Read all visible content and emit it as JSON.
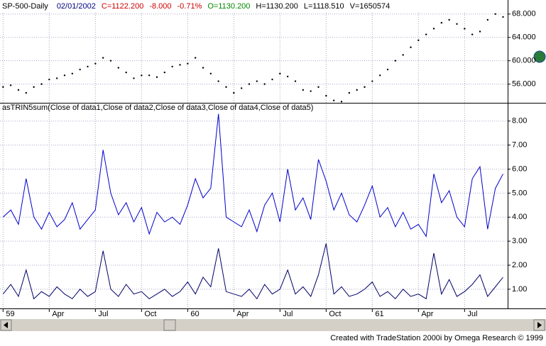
{
  "chart_data": [
    {
      "type": "line",
      "title": "SP-500-Daily",
      "annotations": [
        {
          "text": "02/01/2002",
          "color": "#000080"
        },
        {
          "text": "C=1122.200",
          "color": "#cc0000"
        },
        {
          "text": "-8.000",
          "color": "#cc0000"
        },
        {
          "text": "-0.71%",
          "color": "#cc0000"
        },
        {
          "text": "O=1130.200",
          "color": "#008800"
        },
        {
          "text": "H=1130.200",
          "color": "#000000"
        },
        {
          "text": "L=1118.510",
          "color": "#000000"
        },
        {
          "text": "V=1650574",
          "color": "#000000"
        }
      ],
      "x": [
        0,
        0.5,
        1,
        1.5,
        2,
        2.5,
        3,
        3.5,
        4,
        4.5,
        5,
        5.5,
        6,
        6.5,
        7,
        7.5,
        8,
        8.5,
        9,
        9.5,
        10,
        10.5,
        11,
        11.5,
        12,
        12.5,
        13,
        13.5,
        14,
        14.5,
        15,
        15.5,
        16,
        16.5,
        17,
        17.5,
        18,
        18.5,
        19,
        19.5,
        20,
        20.5,
        21,
        21.5,
        22,
        22.5,
        23,
        23.5,
        24,
        24.5,
        25,
        25.5,
        26,
        26.5,
        27,
        27.5,
        28,
        28.5,
        29,
        29.5,
        30,
        30.5,
        31,
        31.5,
        32,
        32.5
      ],
      "series": [
        {
          "color": "#000000",
          "values": [
            55.5,
            55.8,
            55.0,
            54.5,
            55.5,
            56.0,
            56.8,
            57.0,
            57.5,
            57.8,
            58.5,
            59.0,
            59.5,
            60.5,
            60.0,
            58.8,
            58.0,
            57.0,
            57.5,
            57.5,
            57.2,
            58.0,
            59.0,
            59.3,
            59.5,
            60.5,
            58.8,
            57.8,
            56.5,
            55.5,
            54.5,
            55.3,
            56.0,
            56.5,
            56.0,
            56.8,
            57.8,
            57.3,
            56.5,
            55.0,
            54.8,
            55.5,
            54.0,
            53.2,
            53.0,
            54.5,
            55.0,
            55.5,
            56.5,
            57.5,
            58.5,
            60.0,
            61.0,
            62.3,
            63.5,
            64.5,
            65.5,
            66.5,
            67.0,
            66.3,
            65.5,
            64.5,
            65.0,
            67.0,
            68.0,
            67.5
          ]
        }
      ],
      "xlim": [
        -0.2,
        32.8
      ],
      "ylim": [
        52.8,
        70.4
      ],
      "yticks": [
        {
          "value": 56,
          "label": "56.000"
        },
        {
          "value": 60,
          "label": "60.000"
        },
        {
          "value": 64,
          "label": "64.000"
        },
        {
          "value": 68,
          "label": "68.000"
        }
      ],
      "grid": true,
      "dotted": true
    },
    {
      "type": "line",
      "title": "asTRIN5sum(Close of data1,Close of data2,Close of data3,Close of data4,Close of data5)",
      "x": [
        0,
        0.5,
        1,
        1.5,
        2,
        2.5,
        3,
        3.5,
        4,
        4.5,
        5,
        5.5,
        6,
        6.5,
        7,
        7.5,
        8,
        8.5,
        9,
        9.5,
        10,
        10.5,
        11,
        11.5,
        12,
        12.5,
        13,
        13.5,
        14,
        14.5,
        15,
        15.5,
        16,
        16.5,
        17,
        17.5,
        18,
        18.5,
        19,
        19.5,
        20,
        20.5,
        21,
        21.5,
        22,
        22.5,
        23,
        23.5,
        24,
        24.5,
        25,
        25.5,
        26,
        26.5,
        27,
        27.5,
        28,
        28.5,
        29,
        29.5,
        30,
        30.5,
        31,
        31.5,
        32,
        32.5
      ],
      "series": [
        {
          "color": "#0000cc",
          "values": [
            4.0,
            4.3,
            3.7,
            5.6,
            4.0,
            3.5,
            4.2,
            3.6,
            3.9,
            4.6,
            3.5,
            3.9,
            4.3,
            6.8,
            5.0,
            4.1,
            4.6,
            3.8,
            4.4,
            3.3,
            4.2,
            3.8,
            4.0,
            3.7,
            4.5,
            5.6,
            4.8,
            5.2,
            8.3,
            4.0,
            3.8,
            3.6,
            4.3,
            3.4,
            4.5,
            5.0,
            3.8,
            6.0,
            4.3,
            4.8,
            3.9,
            6.4,
            5.5,
            4.3,
            5.0,
            4.1,
            3.8,
            4.5,
            5.3,
            4.0,
            4.4,
            3.6,
            4.2,
            3.5,
            3.7,
            3.2,
            5.8,
            4.6,
            5.1,
            4.0,
            3.6,
            5.6,
            6.1,
            3.5,
            5.2,
            5.8
          ]
        },
        {
          "color": "#000066",
          "values": [
            0.8,
            1.2,
            0.7,
            1.8,
            0.6,
            0.9,
            0.7,
            1.1,
            0.8,
            0.6,
            1.0,
            0.7,
            0.9,
            2.6,
            1.0,
            0.7,
            1.2,
            0.8,
            0.9,
            0.6,
            0.8,
            1.0,
            0.7,
            0.9,
            1.3,
            0.8,
            1.5,
            1.1,
            2.7,
            0.9,
            0.8,
            0.7,
            1.0,
            0.6,
            1.2,
            0.8,
            1.0,
            1.8,
            0.8,
            1.1,
            0.7,
            1.6,
            2.9,
            0.8,
            1.1,
            0.7,
            0.8,
            1.0,
            1.3,
            0.7,
            0.9,
            0.6,
            1.0,
            0.7,
            0.8,
            0.6,
            2.5,
            0.8,
            1.4,
            0.7,
            0.9,
            1.2,
            1.6,
            0.7,
            1.1,
            1.5
          ]
        }
      ],
      "xlim": [
        -0.2,
        32.8
      ],
      "ylim": [
        0.2,
        8.7
      ],
      "yticks": [
        {
          "value": 1,
          "label": "1.00"
        },
        {
          "value": 2,
          "label": "2.00"
        },
        {
          "value": 3,
          "label": "3.00"
        },
        {
          "value": 4,
          "label": "4.00"
        },
        {
          "value": 5,
          "label": "5.00"
        },
        {
          "value": 6,
          "label": "6.00"
        },
        {
          "value": 7,
          "label": "7.00"
        },
        {
          "value": 8,
          "label": "8.00"
        }
      ],
      "xticks": [
        {
          "value": 0,
          "label": "59"
        },
        {
          "value": 3,
          "label": "Apr"
        },
        {
          "value": 6,
          "label": "Jul"
        },
        {
          "value": 9,
          "label": "Oct"
        },
        {
          "value": 12,
          "label": "60"
        },
        {
          "value": 15,
          "label": "Apr"
        },
        {
          "value": 18,
          "label": "Jul"
        },
        {
          "value": 21,
          "label": "Oct"
        },
        {
          "value": 24,
          "label": "61"
        },
        {
          "value": 27,
          "label": "Apr"
        },
        {
          "value": 30,
          "label": "Jul"
        }
      ],
      "grid": true
    }
  ],
  "footer": "Created with TradeStation 2000i by Omega Research © 1999"
}
